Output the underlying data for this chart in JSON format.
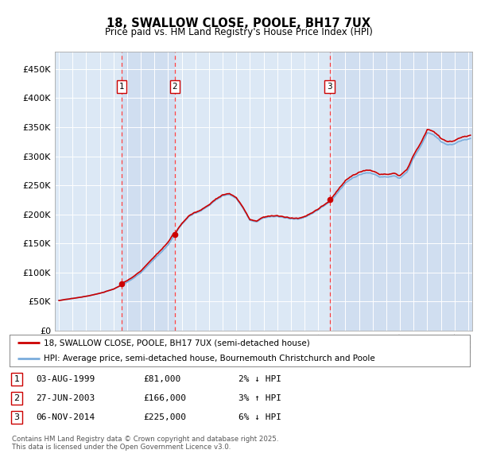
{
  "title_line1": "18, SWALLOW CLOSE, POOLE, BH17 7UX",
  "title_line2": "Price paid vs. HM Land Registry's House Price Index (HPI)",
  "hpi_color": "#7aaddc",
  "price_color": "#cc0000",
  "dashed_color": "#ff4444",
  "plot_bg": "#dce8f5",
  "shaded_bg": "#c8d8ee",
  "legend_entry1": "18, SWALLOW CLOSE, POOLE, BH17 7UX (semi-detached house)",
  "legend_entry2": "HPI: Average price, semi-detached house, Bournemouth Christchurch and Poole",
  "transactions": [
    {
      "num": 1,
      "date": "03-AUG-1999",
      "price": 81000,
      "pct": "2%",
      "dir": "↓",
      "year": 1999.583
    },
    {
      "num": 2,
      "date": "27-JUN-2003",
      "price": 166000,
      "pct": "3%",
      "dir": "↑",
      "year": 2003.486
    },
    {
      "num": 3,
      "date": "06-NOV-2014",
      "price": 225000,
      "pct": "6%",
      "dir": "↓",
      "year": 2014.847
    }
  ],
  "copyright_text": "Contains HM Land Registry data © Crown copyright and database right 2025.\nThis data is licensed under the Open Government Licence v3.0.",
  "yticks": [
    0,
    50000,
    100000,
    150000,
    200000,
    250000,
    300000,
    350000,
    400000,
    450000
  ],
  "ylim": [
    0,
    480000
  ],
  "xlim_start": 1994.7,
  "xlim_end": 2025.3
}
